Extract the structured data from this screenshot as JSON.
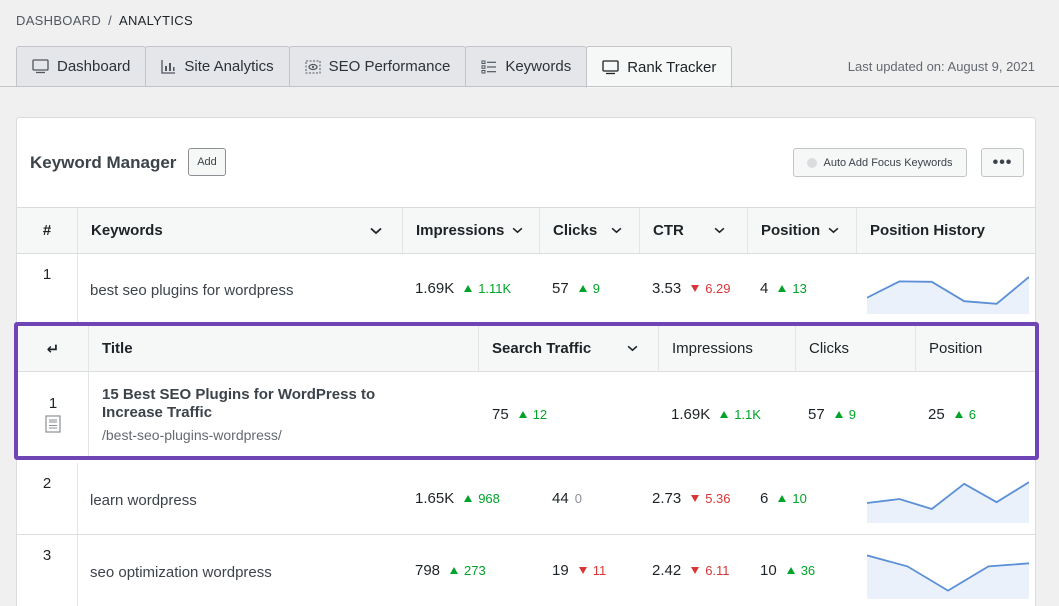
{
  "breadcrumb": {
    "root": "DASHBOARD",
    "separator": "/",
    "current": "ANALYTICS"
  },
  "tabs": [
    {
      "label": "Dashboard",
      "icon": "monitor-icon",
      "active": false
    },
    {
      "label": "Site Analytics",
      "icon": "bar-chart-icon",
      "active": false
    },
    {
      "label": "SEO Performance",
      "icon": "eye-icon",
      "active": false
    },
    {
      "label": "Keywords",
      "icon": "list-icon",
      "active": false
    },
    {
      "label": "Rank Tracker",
      "icon": "monitor-icon",
      "active": true
    }
  ],
  "last_updated": "Last updated on: August 9, 2021",
  "panel": {
    "title": "Keyword Manager",
    "add_label": "Add",
    "auto_add_label": "Auto Add Focus Keywords",
    "more_label": "•••"
  },
  "table": {
    "columns": {
      "num": "#",
      "keywords": "Keywords",
      "impressions": "Impressions",
      "clicks": "Clicks",
      "ctr": "CTR",
      "position": "Position",
      "history": "Position History"
    },
    "rows": [
      {
        "num": "1",
        "keyword": "best seo plugins for wordpress",
        "impressions": "1.69K",
        "impressions_delta": "1.11K",
        "impressions_dir": "up",
        "clicks": "57",
        "clicks_delta": "9",
        "clicks_dir": "up",
        "ctr": "3.53",
        "ctr_delta": "6.29",
        "ctr_dir": "down",
        "position": "4",
        "position_delta": "13",
        "position_dir": "up",
        "history": [
          0.72,
          0.35,
          0.36,
          0.8,
          0.86,
          0.25
        ]
      },
      {
        "num": "2",
        "keyword": "learn wordpress",
        "impressions": "1.65K",
        "impressions_delta": "968",
        "impressions_dir": "up",
        "clicks": "44",
        "clicks_delta": "0",
        "clicks_dir": "flat",
        "ctr": "2.73",
        "ctr_delta": "5.36",
        "ctr_dir": "down",
        "position": "6",
        "position_delta": "10",
        "position_dir": "up",
        "history": [
          0.6,
          0.5,
          0.75,
          0.12,
          0.58,
          0.08
        ]
      },
      {
        "num": "3",
        "keyword": "seo optimization wordpress",
        "impressions": "798",
        "impressions_delta": "273",
        "impressions_dir": "up",
        "clicks": "19",
        "clicks_delta": "11",
        "clicks_dir": "down",
        "ctr": "2.42",
        "ctr_delta": "6.11",
        "ctr_dir": "down",
        "position": "10",
        "position_delta": "36",
        "position_dir": "up",
        "history": [
          0.1,
          0.35,
          0.9,
          0.35,
          0.28
        ]
      }
    ]
  },
  "expanded": {
    "arrow": "↵",
    "columns": {
      "title": "Title",
      "traffic": "Search Traffic",
      "impressions": "Impressions",
      "clicks": "Clicks",
      "position": "Position"
    },
    "row": {
      "num": "1",
      "title": "15 Best SEO Plugins for WordPress to Increase Traffic",
      "slug": "/best-seo-plugins-wordpress/",
      "traffic": "75",
      "traffic_delta": "12",
      "impressions": "1.69K",
      "impressions_delta": "1.1K",
      "clicks": "57",
      "clicks_delta": "9",
      "position": "25",
      "position_delta": "6"
    }
  },
  "colors": {
    "accent": "#6f45b5",
    "up": "#00a32a",
    "down": "#d63638",
    "sparkline": "#5b8fd6"
  }
}
